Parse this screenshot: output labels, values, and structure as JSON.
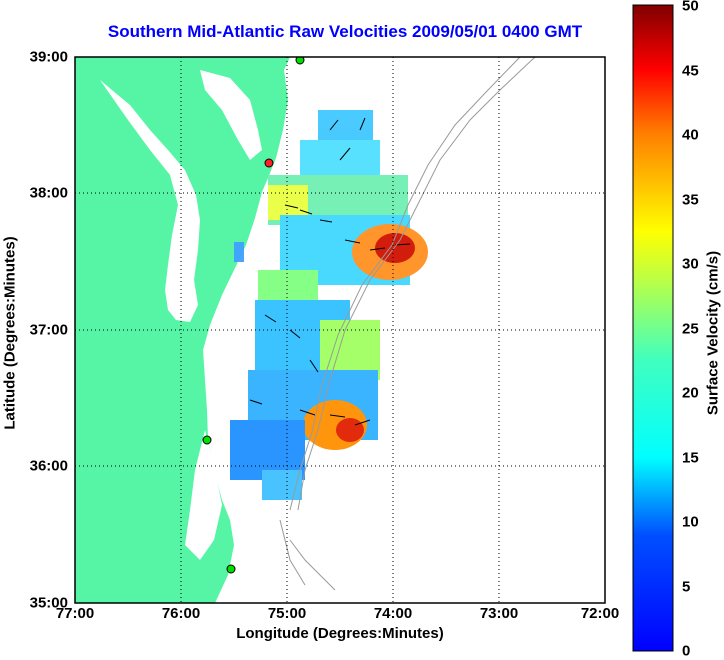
{
  "title": "Southern Mid-Atlantic Raw Velocities 2009/05/01 0400 GMT",
  "x_axis": {
    "label": "Longitude (Degrees:Minutes)",
    "ticks": [
      "77:00",
      "76:00",
      "75:00",
      "74:00",
      "73:00",
      "72:00"
    ]
  },
  "y_axis": {
    "label": "Latitude (Degrees:Minutes)",
    "ticks": [
      "39:00",
      "38:00",
      "37:00",
      "36:00",
      "35:00"
    ]
  },
  "colorbar": {
    "label": "Surface Velocity (cm/s)",
    "ticks": [
      "50",
      "45",
      "40",
      "35",
      "30",
      "25",
      "20",
      "15",
      "10",
      "5",
      "0"
    ],
    "colormap": "jet"
  },
  "map": {
    "lon_range": [
      -77,
      -72
    ],
    "lat_range": [
      35,
      39
    ],
    "grid": true,
    "land_color": "#55f5a5",
    "contour_color": "#9a9a9a",
    "station_colors": [
      "#00dd00",
      "#ff2020"
    ]
  }
}
